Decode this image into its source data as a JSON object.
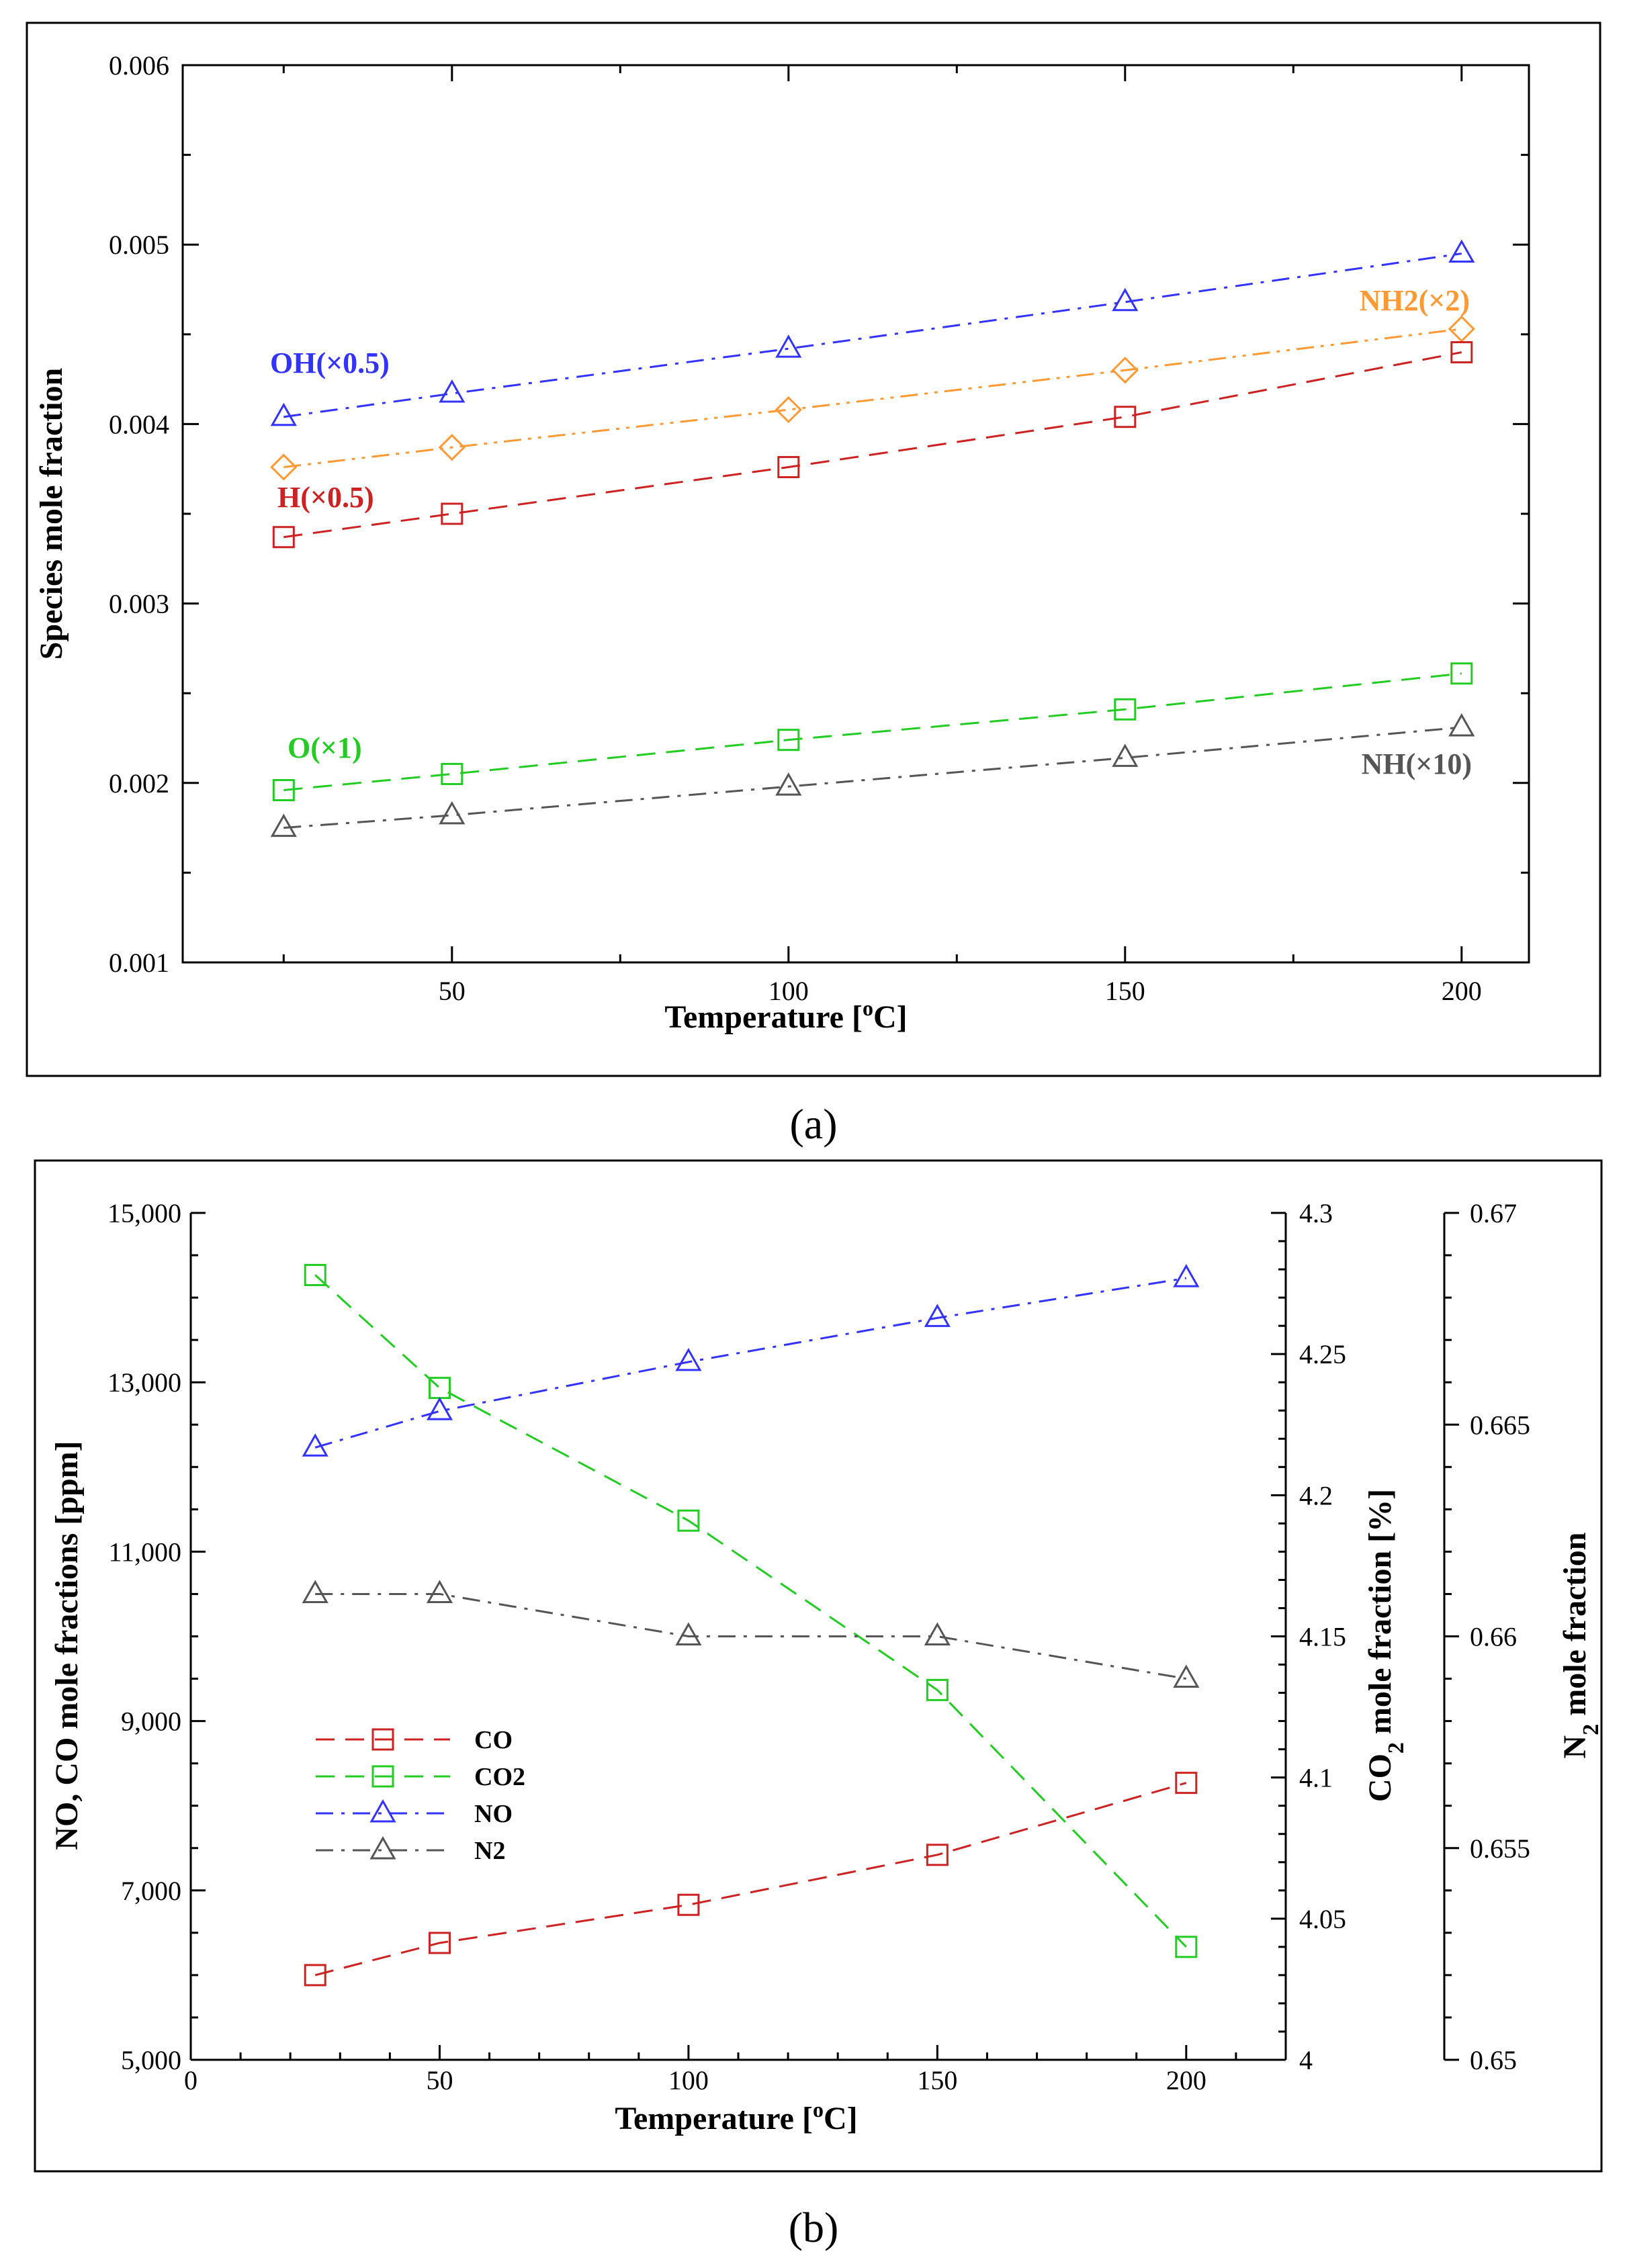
{
  "chart_data": [
    {
      "type": "line",
      "panel": "(a)",
      "xlabel": "Temperature [°C]",
      "ylabel": "Species mole fraction",
      "xlim": [
        10,
        210
      ],
      "ylim": [
        0.001,
        0.006
      ],
      "x_ticks": [
        50,
        100,
        150,
        200
      ],
      "y_ticks": [
        0.001,
        0.002,
        0.003,
        0.004,
        0.005,
        0.006
      ],
      "y_tick_labels": [
        "0.001",
        "0.002",
        "0.003",
        "0.004",
        "0.005",
        "0.006"
      ],
      "grid": false,
      "series": [
        {
          "name": "OH(×0.5)",
          "color": "#3333ff",
          "marker": "triangle",
          "dash": "dashdot",
          "x": [
            25,
            50,
            100,
            150,
            200
          ],
          "y": [
            0.00404,
            0.00417,
            0.00442,
            0.00468,
            0.00495
          ]
        },
        {
          "name": "NH2(×2)",
          "color": "#ff9933",
          "marker": "diamond",
          "dash": "dashdotdot",
          "x": [
            25,
            50,
            100,
            150,
            200
          ],
          "y": [
            0.00376,
            0.00387,
            0.00408,
            0.0043,
            0.00453
          ]
        },
        {
          "name": "H(×0.5)",
          "color": "#cc2222",
          "marker": "square",
          "dash": "dash",
          "x": [
            25,
            50,
            100,
            150,
            200
          ],
          "y": [
            0.00337,
            0.0035,
            0.00376,
            0.00404,
            0.0044
          ]
        },
        {
          "name": "O(×1)",
          "color": "#22cc22",
          "marker": "square",
          "dash": "dash",
          "x": [
            25,
            50,
            100,
            150,
            200
          ],
          "y": [
            0.00196,
            0.00205,
            0.00224,
            0.00241,
            0.00261
          ]
        },
        {
          "name": "NH(×10)",
          "color": "#555555",
          "marker": "triangle",
          "dash": "dashdot",
          "x": [
            25,
            50,
            100,
            150,
            200
          ],
          "y": [
            0.00175,
            0.00182,
            0.00198,
            0.00214,
            0.00231
          ]
        }
      ]
    },
    {
      "type": "line",
      "panel": "(b)",
      "xlabel": "Temperature [°C]",
      "ylabel_left": "NO, CO mole fractions [ppm]",
      "ylabel_right1": "CO2 mole fraction [%]",
      "ylabel_right2": "N2 mole fraction",
      "xlim": [
        0,
        220
      ],
      "x_ticks": [
        0,
        50,
        100,
        150,
        200
      ],
      "ylim_left": [
        5000,
        15000
      ],
      "ylim_right1": [
        4.0,
        4.3
      ],
      "ylim_right2": [
        0.65,
        0.67
      ],
      "y_ticks_left": [
        "5,000",
        "7,000",
        "9,000",
        "11,000",
        "13,000",
        "15,000"
      ],
      "y_ticks_right1": [
        "4",
        "4.05",
        "4.1",
        "4.15",
        "4.2",
        "4.25",
        "4.3"
      ],
      "y_ticks_right2": [
        "0.65",
        "0.655",
        "0.66",
        "0.665",
        "0.67"
      ],
      "legend_placement": "center-left",
      "grid": false,
      "series": [
        {
          "name": "CO",
          "axis": "left",
          "color": "#cc2222",
          "marker": "square",
          "dash": "dash",
          "x": [
            25,
            50,
            100,
            150,
            200
          ],
          "y": [
            6000,
            6380,
            6830,
            7420,
            8270
          ]
        },
        {
          "name": "CO2",
          "axis": "right1",
          "color": "#22cc22",
          "marker": "square",
          "dash": "dash",
          "x": [
            25,
            50,
            100,
            150,
            200
          ],
          "y": [
            4.278,
            4.238,
            4.191,
            4.131,
            4.04
          ]
        },
        {
          "name": "NO",
          "axis": "left",
          "color": "#3333ff",
          "marker": "triangle",
          "dash": "dashdot",
          "x": [
            25,
            50,
            100,
            150,
            200
          ],
          "y": [
            12230,
            12660,
            13240,
            13760,
            14230
          ]
        },
        {
          "name": "N2",
          "axis": "right2",
          "color": "#555555",
          "marker": "triangle",
          "dash": "dashdot",
          "x": [
            25,
            50,
            100,
            150,
            200
          ],
          "y": [
            0.661,
            0.661,
            0.66,
            0.66,
            0.659
          ]
        }
      ]
    }
  ],
  "panel_a": {
    "label": "(a)",
    "xlabel_text": "Temperature [",
    "xlabel_sup": "o",
    "xlabel_end": "C]",
    "ylabel": "Species mole fraction",
    "x_tick_labels": [
      "50",
      "100",
      "150",
      "200"
    ]
  },
  "panel_b": {
    "label": "(b)",
    "xlabel_text": "Temperature [",
    "xlabel_sup": "o",
    "xlabel_end": "C]",
    "ylabel_left": "NO, CO mole fractions [ppm]",
    "ylabel_r1_a": "CO",
    "ylabel_r1_sub": "2",
    "ylabel_r1_b": " mole fraction [%]",
    "ylabel_r2_a": "N",
    "ylabel_r2_sub": "2",
    "ylabel_r2_b": " mole fraction",
    "x_tick_labels": [
      "0",
      "50",
      "100",
      "150",
      "200"
    ]
  }
}
